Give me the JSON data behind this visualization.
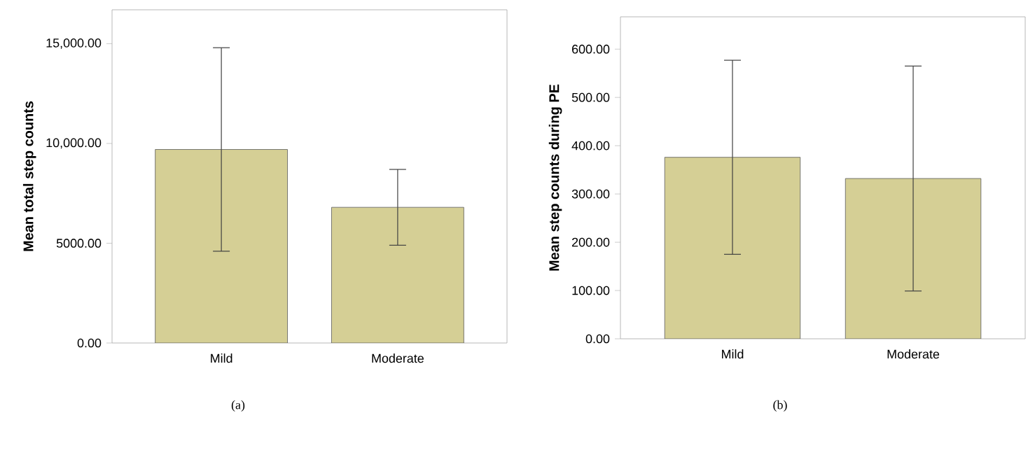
{
  "chart_data": [
    {
      "type": "bar",
      "categories": [
        "Mild",
        "Moderate"
      ],
      "values": [
        9700,
        6800
      ],
      "errors": [
        5100,
        1900
      ],
      "color": "#d5cf95",
      "ylabel": "Mean total step counts",
      "ylim": [
        0,
        16700
      ],
      "yticks": [
        {
          "value": 0,
          "label": "0.00"
        },
        {
          "value": 5000,
          "label": "5000.00"
        },
        {
          "value": 10000,
          "label": "10,000.00"
        },
        {
          "value": 15000,
          "label": "15,000.00"
        }
      ],
      "annotations": [
        "(a)"
      ]
    },
    {
      "type": "bar",
      "categories": [
        "Mild",
        "Moderate"
      ],
      "values": [
        376,
        332
      ],
      "errors": [
        201,
        233
      ],
      "color": "#d5cf95",
      "ylabel": "Mean step counts during PE",
      "ylim": [
        0,
        667
      ],
      "yticks": [
        {
          "value": 0,
          "label": "0.00"
        },
        {
          "value": 100,
          "label": "100.00"
        },
        {
          "value": 200,
          "label": "200.00"
        },
        {
          "value": 300,
          "label": "300.00"
        },
        {
          "value": 400,
          "label": "400.00"
        },
        {
          "value": 500,
          "label": "500.00"
        },
        {
          "value": 600,
          "label": "600.00"
        }
      ],
      "annotations": [
        "(b)"
      ]
    }
  ]
}
